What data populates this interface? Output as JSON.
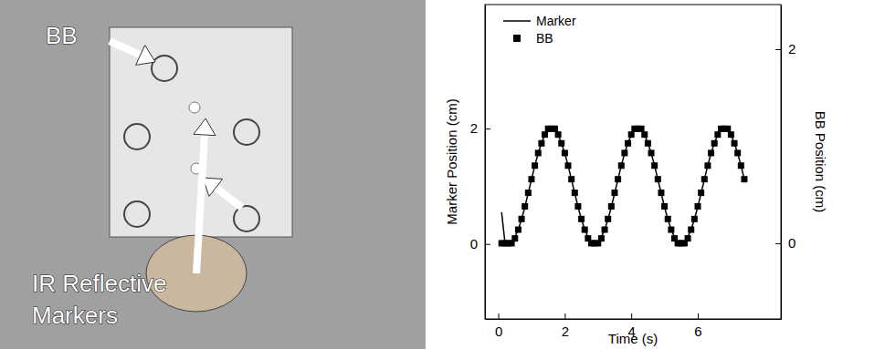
{
  "photo": {
    "labels": [
      "BB",
      "IR Reflective",
      "Markers"
    ]
  },
  "chart_data": {
    "type": "line",
    "x_label": "Time (s)",
    "y_label": "Marker Position (cm)",
    "y2_label": "BB Position (cm)",
    "xlim": [
      -0.4,
      8.5
    ],
    "xticks": [
      0,
      2,
      4,
      6
    ],
    "ylim": [
      -1.3,
      4.15
    ],
    "yticks": [
      0,
      2
    ],
    "y2lim": [
      -0.78,
      2.46
    ],
    "y2ticks": [
      0,
      2
    ],
    "legend": "upper left",
    "x": [
      0.1,
      0.2,
      0.3,
      0.4,
      0.5,
      0.6,
      0.7,
      0.8,
      0.9,
      1.0,
      1.1,
      1.2,
      1.3,
      1.4,
      1.5,
      1.6,
      1.7,
      1.8,
      1.9,
      2.0,
      2.1,
      2.2,
      2.3,
      2.4,
      2.5,
      2.6,
      2.7,
      2.8,
      2.9,
      3.0,
      3.1,
      3.2,
      3.3,
      3.4,
      3.5,
      3.6,
      3.7,
      3.8,
      3.9,
      4.0,
      4.1,
      4.2,
      4.3,
      4.4,
      4.5,
      4.6,
      4.7,
      4.8,
      4.9,
      5.0,
      5.1,
      5.2,
      5.3,
      5.4,
      5.5,
      5.6,
      5.7,
      5.8,
      5.9,
      6.0,
      6.1,
      6.2,
      6.3,
      6.4,
      6.5,
      6.6,
      6.7,
      6.8,
      6.9,
      7.0,
      7.1,
      7.2,
      7.3,
      7.4
    ],
    "series": [
      {
        "name": "Marker",
        "type": "line",
        "color": "#000000",
        "line_style": "solid",
        "values": [
          0.55,
          0.03,
          0,
          0.03,
          0.12,
          0.25,
          0.43,
          0.64,
          0.88,
          1.12,
          1.36,
          1.57,
          1.75,
          1.89,
          1.97,
          2.0,
          1.97,
          1.89,
          1.75,
          1.57,
          1.36,
          1.12,
          0.88,
          0.64,
          0.43,
          0.25,
          0.12,
          0.03,
          0,
          0.03,
          0.12,
          0.25,
          0.43,
          0.64,
          0.88,
          1.12,
          1.36,
          1.57,
          1.75,
          1.89,
          1.97,
          2.0,
          1.97,
          1.89,
          1.75,
          1.57,
          1.36,
          1.12,
          0.88,
          0.64,
          0.43,
          0.25,
          0.12,
          0.03,
          0,
          0.03,
          0.12,
          0.25,
          0.43,
          0.64,
          0.88,
          1.12,
          1.36,
          1.57,
          1.75,
          1.89,
          1.97,
          2.0,
          1.97,
          1.89,
          1.75,
          1.57,
          1.36,
          1.12
        ]
      },
      {
        "name": "BB",
        "type": "scatter",
        "marker": "square",
        "color": "#000000",
        "axis": "y2",
        "values": [
          0,
          0,
          0,
          0,
          0.05,
          0.14,
          0.25,
          0.38,
          0.52,
          0.66,
          0.8,
          0.93,
          1.03,
          1.12,
          1.18,
          1.18,
          1.18,
          1.12,
          1.03,
          0.93,
          0.8,
          0.66,
          0.52,
          0.38,
          0.25,
          0.14,
          0.05,
          0,
          0,
          0,
          0.05,
          0.14,
          0.25,
          0.38,
          0.52,
          0.66,
          0.8,
          0.93,
          1.03,
          1.12,
          1.18,
          1.18,
          1.18,
          1.12,
          1.03,
          0.93,
          0.8,
          0.66,
          0.52,
          0.38,
          0.25,
          0.14,
          0.05,
          0,
          0,
          0,
          0.05,
          0.14,
          0.25,
          0.38,
          0.52,
          0.66,
          0.8,
          0.93,
          1.03,
          1.12,
          1.18,
          1.18,
          1.18,
          1.12,
          1.03,
          0.93,
          0.8,
          0.66
        ]
      }
    ]
  }
}
